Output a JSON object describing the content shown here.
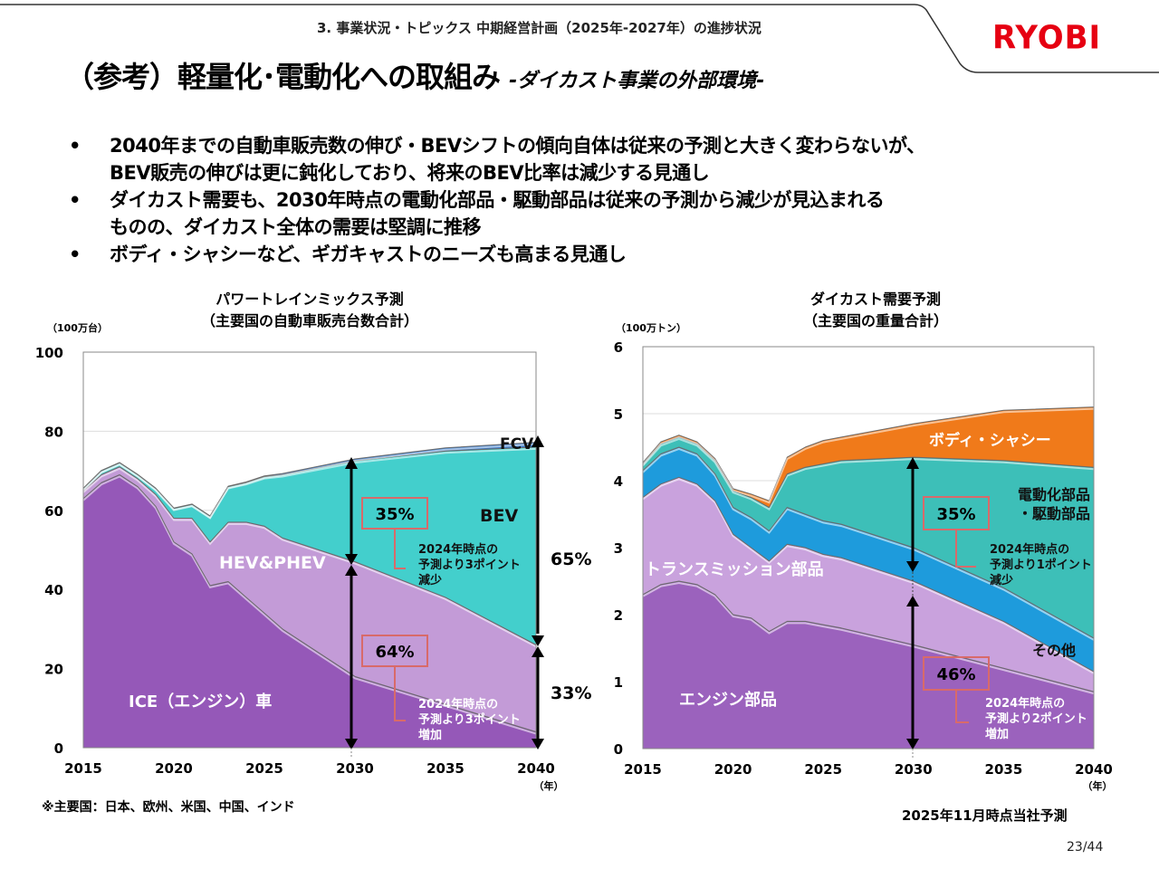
{
  "header": {
    "section": "3. 事業状況・トピックス 中期経営計画（2025年-2027年）の進捗状況",
    "logo": "RYOBI",
    "logo_color": "#e60012"
  },
  "title": {
    "main": "（参考）軽量化･電動化への取組み",
    "sub": "-ダイカスト事業の外部環境-"
  },
  "bullets": [
    {
      "marker": "•",
      "text": "2040年までの自動車販売数の伸び・BEVシフトの傾向自体は従来の予測と大きく変わらないが、\nBEV販売の伸びは更に鈍化しており、将来のBEV比率は減少する見通し"
    },
    {
      "marker": "•",
      "text": "ダイカスト需要も、2030年時点の電動化部品・駆動部品は従来の予測から減少が見込まれる\nものの、ダイカスト全体の需要は堅調に推移"
    },
    {
      "marker": "•",
      "text": "ボディ・シャシーなど、ギガキャストのニーズも高まる見通し"
    }
  ],
  "chart_data": [
    {
      "type": "area",
      "stacked": true,
      "title": "パワートレインミックス予測",
      "subtitle": "（主要国の自動車販売台数合計）",
      "ylabel": "（100万台）",
      "xlabel": "（年）",
      "ylim": [
        0,
        100
      ],
      "yticks": [
        0,
        20,
        40,
        60,
        80,
        100
      ],
      "xticks": [
        2015,
        2020,
        2025,
        2030,
        2035,
        2040
      ],
      "grid": true,
      "x": [
        2015,
        2016,
        2017,
        2018,
        2019,
        2020,
        2021,
        2022,
        2023,
        2024,
        2025,
        2026,
        2030,
        2035,
        2040
      ],
      "series": [
        {
          "name": "ICE（エンジン）車",
          "color": "#9558b8",
          "values": [
            63,
            67,
            69,
            66,
            61,
            52,
            49,
            41,
            42,
            38,
            34,
            30,
            18,
            11,
            4
          ]
        },
        {
          "name": "HEV&PHEV",
          "color": "#c39bd7",
          "values": [
            2,
            2,
            2,
            2,
            3,
            6,
            9,
            11,
            15,
            19,
            22,
            23,
            29,
            27,
            22
          ]
        },
        {
          "name": "BEV",
          "color": "#43cfcc",
          "values": [
            0.5,
            1,
            1,
            1,
            1.5,
            2.5,
            3.5,
            6.5,
            9,
            10,
            12.5,
            16,
            25.5,
            37,
            50
          ]
        },
        {
          "name": "FCV",
          "color": "#3d7cc9",
          "values": [
            0.1,
            0.1,
            0.1,
            0.1,
            0.1,
            0.1,
            0.1,
            0.1,
            0.1,
            0.2,
            0.2,
            0.3,
            0.5,
            0.8,
            1.2
          ]
        }
      ],
      "annotations": [
        {
          "label": "FCV"
        },
        {
          "label": "BEV"
        },
        {
          "label": "HEV&PHEV"
        },
        {
          "label": "ICE（エンジン）車"
        },
        {
          "year": 2030,
          "box": "35%",
          "note": "2024年時点の\n予測より3ポイント\n減少"
        },
        {
          "year": 2030,
          "box": "64%",
          "note": "2024年時点の\n予測より3ポイント\n増加"
        },
        {
          "year": 2040,
          "share": "65%"
        },
        {
          "year": 2040,
          "share": "33%"
        }
      ]
    },
    {
      "type": "area",
      "stacked": true,
      "title": "ダイカスト需要予測",
      "subtitle": "（主要国の重量合計）",
      "ylabel": "（100万トン）",
      "xlabel": "（年）",
      "ylim": [
        0,
        6
      ],
      "yticks": [
        0,
        1,
        2,
        3,
        4,
        5,
        6
      ],
      "xticks": [
        2015,
        2020,
        2025,
        2030,
        2035,
        2040
      ],
      "grid": true,
      "x": [
        2015,
        2016,
        2017,
        2018,
        2019,
        2020,
        2021,
        2022,
        2023,
        2024,
        2025,
        2026,
        2030,
        2035,
        2040
      ],
      "series": [
        {
          "name": "エンジン部品",
          "color": "#9b62bd",
          "values": [
            2.3,
            2.45,
            2.5,
            2.45,
            2.3,
            2.0,
            1.95,
            1.75,
            1.9,
            1.9,
            1.85,
            1.8,
            1.55,
            1.2,
            0.85
          ]
        },
        {
          "name": "トランスミッション部品",
          "color": "#c9a2dd",
          "values": [
            1.45,
            1.5,
            1.55,
            1.5,
            1.4,
            1.2,
            1.05,
            1.05,
            1.15,
            1.1,
            1.05,
            1.05,
            0.95,
            0.7,
            0.3
          ]
        },
        {
          "name": "その他",
          "color": "#1e9bdc",
          "values": [
            0.4,
            0.45,
            0.45,
            0.45,
            0.4,
            0.4,
            0.45,
            0.45,
            0.55,
            0.5,
            0.5,
            0.5,
            0.5,
            0.5,
            0.5
          ]
        },
        {
          "name": "電動化部品・駆動部品",
          "color": "#3dbfb8",
          "values": [
            0.1,
            0.15,
            0.15,
            0.15,
            0.2,
            0.25,
            0.3,
            0.35,
            0.5,
            0.7,
            0.85,
            0.95,
            1.35,
            1.9,
            2.55
          ]
        },
        {
          "name": "ボディ・シャシー",
          "color": "#f07a1a",
          "values": [
            0.02,
            0.03,
            0.03,
            0.03,
            0.03,
            0.03,
            0.05,
            0.1,
            0.25,
            0.3,
            0.35,
            0.35,
            0.5,
            0.75,
            0.9
          ]
        }
      ],
      "annotations": [
        {
          "label": "ボディ・シャシー"
        },
        {
          "label": "電動化部品\n・駆動部品"
        },
        {
          "label": "トランスミッション部品"
        },
        {
          "label": "その他"
        },
        {
          "label": "エンジン部品"
        },
        {
          "year": 2030,
          "box": "35%",
          "note": "2024年時点の\n予測より1ポイント\n減少"
        },
        {
          "year": 2030,
          "box": "46%",
          "note": "2024年時点の\n予測より2ポイント\n増加"
        }
      ]
    }
  ],
  "footnote": "※主要国：日本、欧州、米国、中国、インド",
  "forecast_note": "2025年11月時点当社予測",
  "page": "23/44"
}
